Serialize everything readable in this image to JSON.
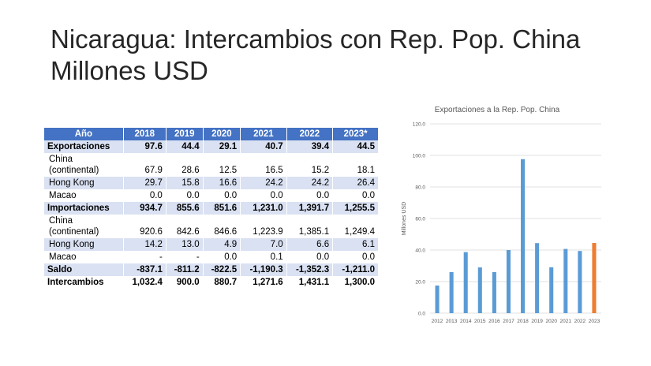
{
  "slide": {
    "title_line1": "Nicaragua: Intercambios con Rep. Pop. China",
    "title_line2": "Millones USD"
  },
  "table": {
    "header": [
      "Año",
      "2018",
      "2019",
      "2020",
      "2021",
      "2022",
      "2023*"
    ],
    "rows": [
      {
        "label": "Exportaciones",
        "label2": "",
        "values": [
          "97.6",
          "44.4",
          "29.1",
          "40.7",
          "39.4",
          "44.5"
        ],
        "bold": true,
        "band": true
      },
      {
        "label": "China",
        "label2": "(continental)",
        "values": [
          "67.9",
          "28.6",
          "12.5",
          "16.5",
          "15.2",
          "18.1"
        ],
        "bold": false,
        "band": false
      },
      {
        "label": "Hong Kong",
        "label2": "",
        "values": [
          "29.7",
          "15.8",
          "16.6",
          "24.2",
          "24.2",
          "26.4"
        ],
        "bold": false,
        "band": true
      },
      {
        "label": "Macao",
        "label2": "",
        "values": [
          "0.0",
          "0.0",
          "0.0",
          "0.0",
          "0.0",
          "0.0"
        ],
        "bold": false,
        "band": false
      },
      {
        "label": "Importaciones",
        "label2": "",
        "values": [
          "934.7",
          "855.6",
          "851.6",
          "1,231.0",
          "1,391.7",
          "1,255.5"
        ],
        "bold": true,
        "band": true
      },
      {
        "label": "China",
        "label2": "(continental)",
        "values": [
          "920.6",
          "842.6",
          "846.6",
          "1,223.9",
          "1,385.1",
          "1,249.4"
        ],
        "bold": false,
        "band": false
      },
      {
        "label": "Hong Kong",
        "label2": "",
        "values": [
          "14.2",
          "13.0",
          "4.9",
          "7.0",
          "6.6",
          "6.1"
        ],
        "bold": false,
        "band": true
      },
      {
        "label": "Macao",
        "label2": "",
        "values": [
          "-",
          "-",
          "0.0",
          "0.1",
          "0.0",
          "0.0"
        ],
        "bold": false,
        "band": false
      },
      {
        "label": "Saldo",
        "label2": "",
        "values": [
          "-837.1",
          "-811.2",
          "-822.5",
          "-1,190.3",
          "-1,352.3",
          "-1,211.0"
        ],
        "bold": true,
        "band": true
      },
      {
        "label": "Intercambios",
        "label2": "",
        "values": [
          "1,032.4",
          "900.0",
          "880.7",
          "1,271.6",
          "1,431.1",
          "1,300.0"
        ],
        "bold": true,
        "band": false
      }
    ]
  },
  "chart_data": {
    "type": "bar",
    "title": "Exportaciones a la Rep. Pop. China",
    "xlabel": "",
    "ylabel": "Millones USD",
    "categories": [
      "2012",
      "2013",
      "2014",
      "2015",
      "2016",
      "2017",
      "2018",
      "2019",
      "2020",
      "2021",
      "2022",
      "2023"
    ],
    "values": [
      17.5,
      26.0,
      38.7,
      29.0,
      26.0,
      40.0,
      97.6,
      44.4,
      29.1,
      40.7,
      39.4,
      44.5
    ],
    "ylim": [
      0,
      120
    ],
    "yticks": [
      "0.0",
      "20.0",
      "40.0",
      "60.0",
      "80.0",
      "100.0",
      "120.0"
    ],
    "grid": true,
    "colors": {
      "default": "#5b9bd5",
      "highlight": "#ed7d31",
      "grid": "#d9d9d9",
      "axis_text": "#595959"
    },
    "highlight_category": "2023"
  }
}
